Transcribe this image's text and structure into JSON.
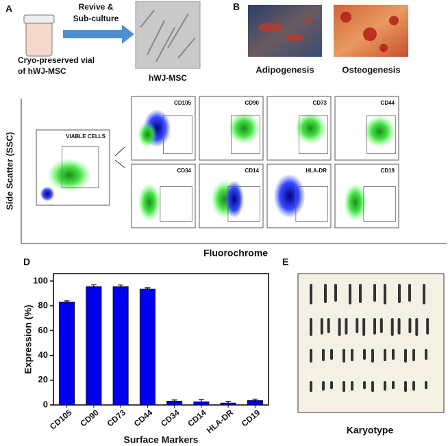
{
  "panel_a": {
    "letter": "A",
    "arrow_label": [
      "Revive &",
      "Sub-culture"
    ],
    "vial_label": [
      "Cryo-preserved vial",
      "of hWJ-MSC"
    ],
    "image_label": "hWJ-MSC"
  },
  "panel_b": {
    "letter": "B",
    "labels": [
      "Adipogenesis",
      "Osteogenesis"
    ]
  },
  "panel_c": {
    "y_label": "Side Scatter (SSC)",
    "x_label": "Fluorochrome",
    "viable_label": "VIABLE CELLS",
    "markers": [
      "CD105",
      "CD90",
      "CD73",
      "CD44",
      "CD34",
      "CD14",
      "HLA-DR",
      "CD19"
    ]
  },
  "chart_data": {
    "type": "bar",
    "letter": "D",
    "categories": [
      "CD105",
      "CD90",
      "CD73",
      "CD44",
      "CD34",
      "CD14",
      "HLA-DR",
      "CD19"
    ],
    "values": [
      83,
      95.5,
      95.5,
      93.5,
      3,
      2.5,
      1.5,
      3.5
    ],
    "errors": [
      1,
      1.5,
      1.3,
      1,
      1,
      2,
      1.5,
      1.2
    ],
    "color": "#0000ee",
    "ylim": [
      0,
      106
    ],
    "yticks": [
      0,
      20,
      40,
      60,
      80,
      100
    ],
    "y_label": "Expression (%)",
    "x_label": "Surface Markers"
  },
  "panel_e": {
    "letter": "E",
    "label": "Karyotype"
  }
}
